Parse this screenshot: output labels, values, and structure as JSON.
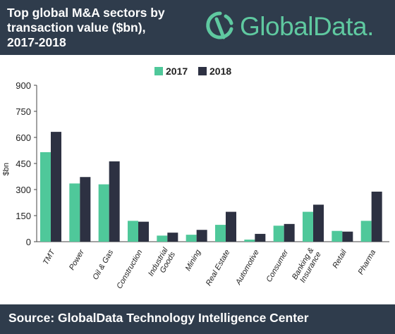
{
  "header": {
    "title_lines": [
      "Top global M&A sectors by",
      "transaction value ($bn),",
      "2017-2018"
    ],
    "logo_text": "GlobalData."
  },
  "footer": {
    "source": "Source: GlobalData Technology Intelligence Center"
  },
  "colors": {
    "header_bg": "#2f3c4c",
    "series_2017": "#4fc89a",
    "series_2018": "#2d3142",
    "logo": "#5fc9a0"
  },
  "chart_data": {
    "type": "bar",
    "title": "Top global M&A sectors by transaction value ($bn), 2017-2018",
    "xlabel": "",
    "ylabel": "$bn",
    "ylim": [
      0,
      900
    ],
    "yticks": [
      0,
      150,
      300,
      450,
      600,
      750,
      900
    ],
    "grid": false,
    "legend_position": "top",
    "categories": [
      "TMT",
      "Power",
      "Oil & Gas",
      "Construction",
      "Industrial Goods",
      "Mining",
      "Real Estate",
      "Automotive",
      "Consumer",
      "Banking & Insurance",
      "Retail",
      "Pharma"
    ],
    "category_lines": [
      [
        "TMT"
      ],
      [
        "Power"
      ],
      [
        "Oil & Gas"
      ],
      [
        "Construction"
      ],
      [
        "Industrial",
        "Goods"
      ],
      [
        "Mining"
      ],
      [
        "Real Estate"
      ],
      [
        "Automotive"
      ],
      [
        "Consumer"
      ],
      [
        "Banking &",
        "Insurance"
      ],
      [
        "Retail"
      ],
      [
        "Pharma"
      ]
    ],
    "series": [
      {
        "name": "2017",
        "values": [
          515,
          335,
          330,
          120,
          35,
          40,
          97,
          12,
          92,
          172,
          62,
          120
        ]
      },
      {
        "name": "2018",
        "values": [
          632,
          372,
          462,
          115,
          52,
          68,
          172,
          45,
          102,
          213,
          58,
          288
        ]
      }
    ]
  }
}
